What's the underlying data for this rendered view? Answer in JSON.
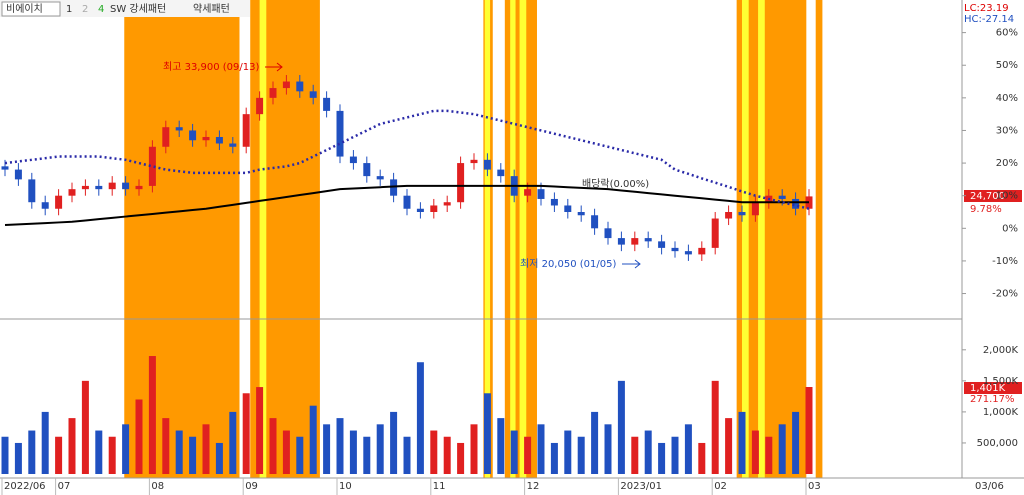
{
  "chart_data": {
    "type": "candlestick",
    "header": {
      "stock_name": "비에이치",
      "tabs": [
        "1",
        "2",
        "4"
      ],
      "patterns": [
        "SW 강세패턴",
        "약세패턴"
      ],
      "lc": "LC:23.19",
      "hc": "HC:-27.14"
    },
    "categories": [
      "2022/06",
      null,
      null,
      null,
      "07",
      null,
      null,
      null,
      null,
      null,
      null,
      "08",
      null,
      null,
      null,
      null,
      null,
      null,
      "09",
      null,
      null,
      null,
      null,
      null,
      null,
      "10",
      null,
      null,
      null,
      null,
      null,
      null,
      "11",
      null,
      null,
      null,
      null,
      null,
      null,
      "12",
      null,
      null,
      null,
      null,
      null,
      null,
      "2023/01",
      null,
      null,
      null,
      null,
      null,
      null,
      "02",
      null,
      null,
      null,
      null,
      null,
      null,
      "03"
    ],
    "end_date_label": "03/06",
    "open": [
      19,
      18,
      15,
      8,
      6,
      10,
      12,
      13,
      12,
      14,
      12,
      13,
      25,
      31,
      30,
      27,
      28,
      26,
      25,
      35,
      40,
      43,
      45,
      42,
      40,
      36,
      22,
      20,
      16,
      15,
      10,
      6,
      5,
      7,
      8,
      20,
      21,
      18,
      16,
      10,
      12,
      9,
      7,
      5,
      4,
      0,
      -3,
      -5,
      -3,
      -4,
      -6,
      -7,
      -8,
      -6,
      3,
      5,
      4,
      8,
      10,
      9,
      6
    ],
    "high": [
      21,
      20,
      17,
      10,
      12,
      14,
      15,
      15,
      16,
      16,
      15,
      27,
      33,
      33,
      32,
      30,
      30,
      28,
      37,
      42,
      45,
      47,
      47,
      44,
      42,
      38,
      24,
      22,
      18,
      17,
      12,
      8,
      9,
      10,
      22,
      23,
      23,
      20,
      18,
      14,
      14,
      11,
      9,
      7,
      6,
      2,
      -1,
      -1,
      -1,
      -2,
      -4,
      -5,
      -4,
      5,
      7,
      7,
      10,
      12,
      12,
      11,
      12
    ],
    "low": [
      16,
      13,
      6,
      4,
      4,
      8,
      10,
      10,
      10,
      10,
      10,
      11,
      23,
      28,
      25,
      25,
      24,
      23,
      23,
      33,
      38,
      41,
      40,
      38,
      34,
      20,
      18,
      14,
      13,
      8,
      4,
      3,
      3,
      5,
      6,
      18,
      16,
      14,
      8,
      8,
      7,
      5,
      3,
      2,
      -2,
      -5,
      -7,
      -7,
      -6,
      -8,
      -9,
      -10,
      -10,
      -8,
      1,
      2,
      2,
      6,
      7,
      4,
      4
    ],
    "close": [
      18,
      15,
      8,
      6,
      10,
      12,
      13,
      12,
      14,
      12,
      13,
      25,
      31,
      30,
      27,
      28,
      26,
      25,
      35,
      40,
      43,
      45,
      42,
      40,
      36,
      22,
      20,
      16,
      15,
      10,
      6,
      5,
      7,
      8,
      20,
      21,
      18,
      16,
      10,
      12,
      9,
      7,
      5,
      4,
      0,
      -3,
      -5,
      -3,
      -4,
      -6,
      -7,
      -8,
      -6,
      3,
      5,
      4,
      8,
      10,
      9,
      6,
      9.78
    ],
    "volume": [
      600000,
      500000,
      700000,
      1000000,
      600000,
      900000,
      1500000,
      700000,
      600000,
      800000,
      1200000,
      1900000,
      900000,
      700000,
      600000,
      800000,
      500000,
      1000000,
      1300000,
      1400000,
      900000,
      700000,
      600000,
      1100000,
      800000,
      900000,
      700000,
      600000,
      800000,
      1000000,
      600000,
      1800000,
      700000,
      600000,
      500000,
      800000,
      1300000,
      900000,
      700000,
      600000,
      800000,
      500000,
      700000,
      600000,
      1000000,
      800000,
      1500000,
      600000,
      700000,
      500000,
      600000,
      800000,
      500000,
      1500000,
      900000,
      1000000,
      700000,
      600000,
      800000,
      1000000,
      1401000
    ],
    "overlays": [
      {
        "color": "#000000",
        "dash": false,
        "values": [
          1,
          1.2,
          1.4,
          1.6,
          1.8,
          2,
          2.4,
          2.8,
          3.2,
          3.6,
          4,
          4.4,
          4.8,
          5.2,
          5.6,
          6,
          6.6,
          7.2,
          7.8,
          8.4,
          9,
          9.6,
          10.2,
          10.8,
          11.4,
          12,
          12.2,
          12.4,
          12.6,
          12.8,
          13,
          13,
          13,
          13,
          13,
          13,
          13,
          13,
          13,
          13,
          13,
          12.8,
          12.6,
          12.4,
          12.2,
          12,
          11.6,
          11.2,
          10.8,
          10.4,
          10,
          9.6,
          9.2,
          8.8,
          8.4,
          8,
          8,
          8,
          8,
          8,
          8
        ]
      },
      {
        "color": "#2a2aa8",
        "dash": true,
        "values": [
          20,
          20.5,
          21,
          21.5,
          22,
          22,
          22,
          22,
          21.5,
          21,
          20,
          19,
          18,
          17.5,
          17,
          17,
          17,
          17,
          17,
          18,
          18.5,
          19,
          20,
          22,
          24,
          26,
          28,
          30,
          32,
          33,
          34,
          35,
          36,
          36,
          35.5,
          35,
          34,
          33,
          32,
          31,
          30,
          29,
          28,
          27,
          26,
          25,
          24,
          23,
          22,
          21,
          18,
          16.7,
          15.3,
          14,
          12.7,
          11.3,
          10,
          9,
          8,
          7,
          6
        ]
      }
    ],
    "bands": [
      {
        "from": 8.9,
        "to": 17.5,
        "color": "#ff9900"
      },
      {
        "from": 18.3,
        "to": 23.5,
        "color": "#ff9900"
      },
      {
        "from": 35.7,
        "to": 36.4,
        "color": "#ff9900"
      },
      {
        "from": 37.3,
        "to": 39.7,
        "color": "#ff9900"
      },
      {
        "from": 54.6,
        "to": 59.8,
        "color": "#ff9900"
      },
      {
        "from": 60.5,
        "to": 61,
        "color": "#ff9900"
      },
      {
        "from": 19.0,
        "to": 19.5,
        "color": "#ffff33"
      },
      {
        "from": 35.8,
        "to": 36.2,
        "color": "#ffff33"
      },
      {
        "from": 37.7,
        "to": 38.1,
        "color": "#ffff33"
      },
      {
        "from": 38.4,
        "to": 38.9,
        "color": "#ffff33"
      },
      {
        "from": 55.0,
        "to": 55.5,
        "color": "#ffff33"
      },
      {
        "from": 56.2,
        "to": 56.7,
        "color": "#ffff33"
      }
    ],
    "up_color": "#e02020",
    "down_color": "#2050c0",
    "ylim": [
      -27.5,
      70
    ],
    "yticks": [
      {
        "value": 60,
        "label": "60%"
      },
      {
        "value": 50,
        "label": "50%"
      },
      {
        "value": 40,
        "label": "40%"
      },
      {
        "value": 30,
        "label": "30%"
      },
      {
        "value": 20,
        "label": "20%"
      },
      {
        "value": 10,
        "label": "10%"
      },
      {
        "value": 0,
        "label": "0%"
      },
      {
        "value": -10,
        "label": "-10%"
      },
      {
        "value": -20,
        "label": "-20%"
      }
    ],
    "vlim": [
      0,
      2480000
    ],
    "vticks": [
      {
        "value": 2000000,
        "label": "2,000K"
      },
      {
        "value": 1500000,
        "label": "1,500K"
      },
      {
        "value": 1000000,
        "label": "1,000K"
      },
      {
        "value": 500000,
        "label": "500,000"
      }
    ],
    "last_price_label": "24,700",
    "last_change_label": "9.78%",
    "last_volume_label": "1,401K",
    "volume_ratio_label": "271.17%",
    "annotations": {
      "high": "최고 33,900 (09/13)",
      "low": "최저 20,050 (01/05)",
      "dividend": "배당락(0.00%)"
    }
  }
}
